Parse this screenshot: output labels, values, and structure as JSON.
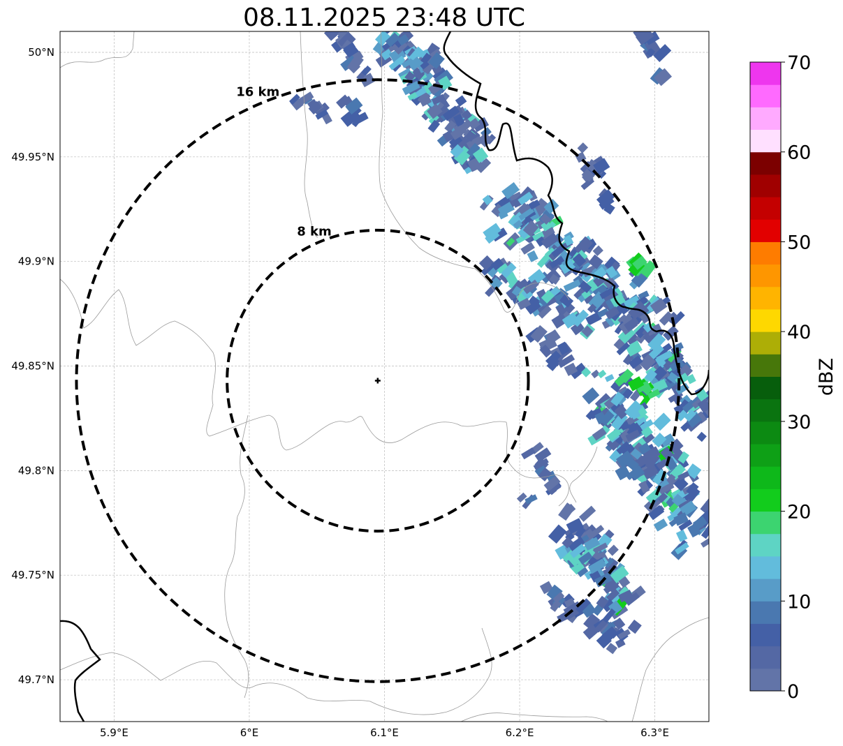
{
  "title": "08.11.2025 23:48 UTC",
  "map": {
    "extent": {
      "lon_min": 5.86,
      "lon_max": 6.34,
      "lat_min": 49.68,
      "lat_max": 50.01
    },
    "lon_ticks": [
      {
        "value": 5.9,
        "label": "5.9°E"
      },
      {
        "value": 6.0,
        "label": "6°E"
      },
      {
        "value": 6.1,
        "label": "6.1°E"
      },
      {
        "value": 6.2,
        "label": "6.2°E"
      },
      {
        "value": 6.3,
        "label": "6.3°E"
      }
    ],
    "lat_ticks": [
      {
        "value": 50.0,
        "label": "50°N"
      },
      {
        "value": 49.95,
        "label": "49.95°N"
      },
      {
        "value": 49.9,
        "label": "49.9°N"
      },
      {
        "value": 49.85,
        "label": "49.85°N"
      },
      {
        "value": 49.8,
        "label": "49.8°N"
      },
      {
        "value": 49.75,
        "label": "49.75°N"
      },
      {
        "value": 49.7,
        "label": "49.7°N"
      }
    ],
    "gridlines": true,
    "radar_site": {
      "lon": 6.095,
      "lat": 49.843
    },
    "range_rings": [
      {
        "radius_km": 8,
        "label": "8 km"
      },
      {
        "radius_km": 16,
        "label": "16 km"
      }
    ]
  },
  "colorbar": {
    "label": "dBZ",
    "min": 0,
    "max": 70,
    "ticks": [
      0,
      10,
      20,
      30,
      40,
      50,
      60,
      70
    ],
    "bin_size": 2.5,
    "colors": [
      "#6274a8",
      "#5468a4",
      "#4460a6",
      "#4a78b0",
      "#589cc8",
      "#62bcdc",
      "#5ed4c4",
      "#3cd470",
      "#12cc1c",
      "#0eb81a",
      "#0ea016",
      "#0c8a12",
      "#0a7410",
      "#075e0c",
      "#47770a",
      "#adae06",
      "#fed800",
      "#ffb400",
      "#fe9600",
      "#fe7c00",
      "#e20000",
      "#c40000",
      "#a00000",
      "#7c0000",
      "#ffe0ff",
      "#ffaaff",
      "#ff6aff",
      "#ee36ee"
    ]
  }
}
